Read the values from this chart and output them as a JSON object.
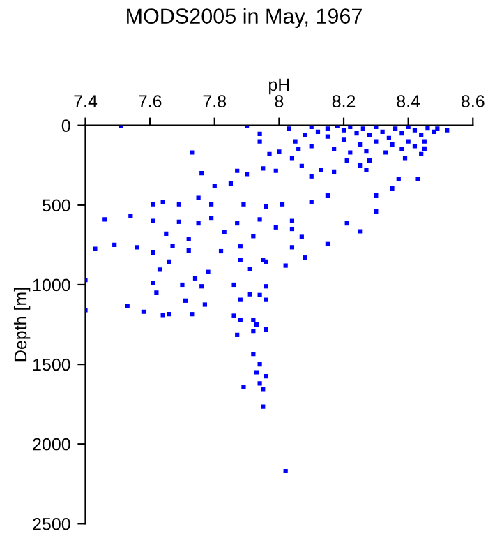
{
  "chart_data": {
    "type": "scatter",
    "title": "MODS2005 in May, 1967",
    "xlabel": "pH",
    "ylabel": "Depth [m]",
    "xlim": [
      7.4,
      8.6
    ],
    "xticks": [
      7.4,
      7.6,
      7.8,
      8,
      8.2,
      8.4,
      8.6
    ],
    "ylim": [
      2500,
      0
    ],
    "yticks": [
      0,
      500,
      1000,
      1500,
      2000,
      2500
    ],
    "grid": false,
    "marker": "square",
    "series": [
      {
        "color": "#0000ff",
        "x": [
          7.51,
          7.9,
          7.73,
          7.94,
          7.94,
          7.97,
          7.76,
          7.8,
          7.85,
          7.87,
          7.9,
          7.95,
          7.99,
          8.0,
          8.04,
          8.07,
          8.1,
          8.13,
          8.17,
          8.21,
          8.27,
          8.3,
          8.35,
          8.37,
          8.43,
          8.39,
          8.45,
          8.52,
          7.61,
          7.64,
          7.69,
          7.75,
          7.79,
          7.89,
          7.96,
          8.01,
          8.1,
          8.15,
          8.21,
          8.25,
          8.3,
          7.46,
          7.54,
          7.61,
          7.69,
          7.75,
          7.79,
          7.87,
          7.94,
          7.99,
          8.04,
          7.65,
          7.72,
          7.83,
          7.92,
          8.04,
          8.07,
          7.43,
          7.49,
          7.56,
          7.61,
          7.67,
          7.72,
          7.82,
          7.88,
          7.96,
          8.04,
          8.15,
          7.4,
          7.4,
          7.61,
          7.63,
          7.62,
          7.7,
          7.74,
          7.76,
          7.78,
          7.71,
          7.77,
          7.53,
          7.58,
          7.64,
          7.66,
          7.73,
          7.86,
          7.88,
          7.91,
          7.91,
          7.94,
          7.96,
          7.96,
          7.86,
          7.88,
          7.92,
          7.93,
          7.96,
          7.87,
          7.92,
          7.92,
          7.94,
          7.93,
          7.96,
          7.94,
          7.89,
          7.95,
          7.95,
          7.95,
          8.02,
          8.08,
          7.66,
          7.61,
          7.88,
          8.02,
          8.1,
          8.15,
          8.18,
          8.2,
          8.22,
          8.24,
          8.26,
          8.28,
          8.3,
          8.32,
          8.34,
          8.36,
          8.38,
          8.4,
          8.42,
          8.44,
          8.46,
          8.48,
          8.3,
          8.35,
          8.4,
          8.42,
          8.25,
          8.2,
          8.15,
          8.12,
          8.08,
          8.05,
          8.03,
          8.06,
          8.1,
          8.17,
          8.22,
          8.27,
          8.33,
          8.38,
          8.44,
          8.28,
          8.25,
          8.45,
          8.49
        ],
        "values": [
          3,
          3,
          170,
          53,
          100,
          180,
          300,
          380,
          365,
          285,
          305,
          270,
          285,
          165,
          205,
          255,
          320,
          280,
          290,
          220,
          280,
          440,
          395,
          335,
          335,
          205,
          145,
          30,
          495,
          480,
          495,
          455,
          495,
          495,
          510,
          495,
          480,
          440,
          615,
          665,
          540,
          590,
          570,
          600,
          605,
          615,
          580,
          615,
          590,
          640,
          600,
          680,
          715,
          670,
          695,
          650,
          700,
          775,
          750,
          765,
          795,
          755,
          785,
          790,
          760,
          855,
          765,
          745,
          970,
          1160,
          990,
          905,
          1050,
          1000,
          960,
          1010,
          920,
          1100,
          1125,
          1135,
          1170,
          1190,
          1185,
          1185,
          1000,
          1095,
          900,
          1060,
          1065,
          1010,
          1095,
          1195,
          1220,
          1220,
          1250,
          1280,
          1315,
          1290,
          1435,
          1500,
          1550,
          1575,
          1620,
          1640,
          1655,
          1765,
          845,
          880,
          830,
          855,
          800,
          845,
          2170,
          10,
          20,
          5,
          30,
          10,
          50,
          20,
          60,
          10,
          40,
          80,
          20,
          50,
          10,
          30,
          60,
          15,
          40,
          100,
          120,
          100,
          130,
          120,
          90,
          70,
          40,
          60,
          100,
          20,
          150,
          130,
          150,
          170,
          160,
          170,
          150,
          180,
          220,
          250,
          100,
          20
        ]
      }
    ]
  }
}
